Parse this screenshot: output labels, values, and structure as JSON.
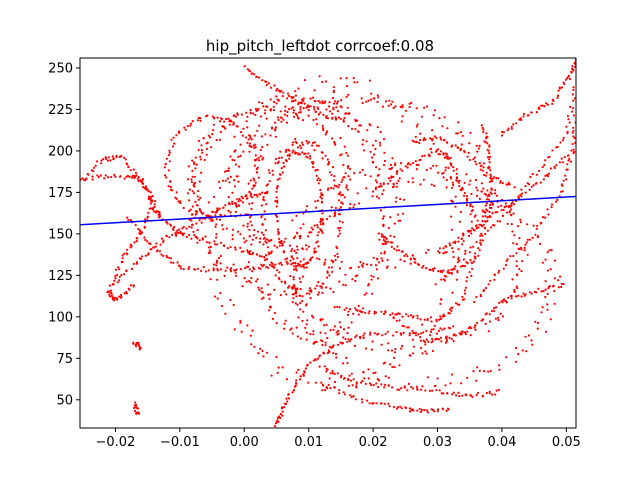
{
  "chart_data": {
    "type": "scatter",
    "title": "hip_pitch_leftdot corrcoef:0.08",
    "xlabel": "",
    "ylabel": "",
    "xlim": [
      -0.0255,
      0.0515
    ],
    "ylim": [
      33,
      256
    ],
    "x_ticks": [
      "−0.02",
      "−0.01",
      "0.00",
      "0.01",
      "0.02",
      "0.03",
      "0.04",
      "0.05"
    ],
    "x_tick_values": [
      -0.02,
      -0.01,
      0.0,
      0.01,
      0.02,
      0.03,
      0.04,
      0.05
    ],
    "y_ticks": [
      "50",
      "75",
      "100",
      "125",
      "150",
      "175",
      "200",
      "225",
      "250"
    ],
    "y_tick_values": [
      50,
      75,
      100,
      125,
      150,
      175,
      200,
      225,
      250
    ],
    "grid": false,
    "legend": "none",
    "scatter_color": "#ff0000",
    "fit_color": "#0000ff",
    "fit_line": {
      "x": [
        -0.0255,
        0.0515
      ],
      "y": [
        155.5,
        172.5
      ]
    },
    "loops": [
      {
        "cx": 0.0085,
        "cy": 165,
        "rx": 0.0035,
        "ry": 35,
        "n": 120
      },
      {
        "cx": 0.009,
        "cy": 160,
        "rx": 0.006,
        "ry": 45,
        "n": 140
      },
      {
        "cx": 0.011,
        "cy": 158,
        "rx": 0.0105,
        "ry": 70,
        "n": 170
      },
      {
        "cx": 0.008,
        "cy": 172,
        "rx": 0.016,
        "ry": 58,
        "n": 170
      },
      {
        "cx": 0.014,
        "cy": 150,
        "rx": 0.019,
        "ry": 90,
        "n": 200
      },
      {
        "cx": 0.004,
        "cy": 185,
        "rx": 0.012,
        "ry": 40,
        "n": 150
      },
      {
        "cx": -0.005,
        "cy": 190,
        "rx": 0.007,
        "ry": 30,
        "n": 110
      },
      {
        "cx": 0.018,
        "cy": 180,
        "rx": 0.02,
        "ry": 50,
        "n": 180
      },
      {
        "cx": 0.025,
        "cy": 135,
        "rx": 0.018,
        "ry": 55,
        "n": 170
      },
      {
        "cx": 0.028,
        "cy": 120,
        "rx": 0.02,
        "ry": 60,
        "n": 170
      }
    ],
    "paths": [
      [
        [
          -0.026,
          178
        ],
        [
          -0.022,
          195
        ],
        [
          -0.019,
          196
        ],
        [
          -0.016,
          182
        ],
        [
          -0.014,
          170
        ],
        [
          -0.016,
          150
        ],
        [
          -0.019,
          135
        ],
        [
          -0.021,
          115
        ],
        [
          -0.02,
          110
        ],
        [
          -0.017,
          120
        ]
      ],
      [
        [
          -0.026,
          183
        ],
        [
          -0.02,
          185
        ],
        [
          -0.016,
          183
        ],
        [
          -0.014,
          166
        ],
        [
          -0.013,
          160
        ],
        [
          -0.01,
          150
        ],
        [
          -0.006,
          146
        ],
        [
          0.0,
          140
        ],
        [
          0.004,
          134
        ]
      ],
      [
        [
          -0.02,
          120
        ],
        [
          -0.016,
          135
        ],
        [
          -0.012,
          148
        ],
        [
          -0.008,
          155
        ],
        [
          -0.004,
          165
        ],
        [
          0.0,
          172
        ],
        [
          0.004,
          175
        ]
      ],
      [
        [
          -0.018,
          160
        ],
        [
          -0.014,
          142
        ],
        [
          -0.01,
          130
        ],
        [
          -0.004,
          128
        ],
        [
          0.002,
          130
        ],
        [
          0.006,
          132
        ]
      ],
      [
        [
          -0.017,
          85
        ],
        [
          -0.016,
          80
        ]
      ],
      [
        [
          -0.017,
          48
        ],
        [
          -0.0165,
          40
        ]
      ],
      [
        [
          0.0,
          250
        ],
        [
          0.004,
          240
        ],
        [
          0.008,
          230
        ],
        [
          0.012,
          222
        ],
        [
          0.016,
          218
        ]
      ],
      [
        [
          0.005,
          35
        ],
        [
          0.006,
          45
        ],
        [
          0.008,
          60
        ],
        [
          0.011,
          75
        ],
        [
          0.015,
          85
        ],
        [
          0.02,
          90
        ],
        [
          0.027,
          90
        ],
        [
          0.033,
          95
        ]
      ],
      [
        [
          0.012,
          70
        ],
        [
          0.016,
          62
        ],
        [
          0.022,
          58
        ],
        [
          0.03,
          55
        ],
        [
          0.035,
          52
        ],
        [
          0.04,
          55
        ]
      ],
      [
        [
          0.012,
          60
        ],
        [
          0.018,
          50
        ],
        [
          0.024,
          45
        ],
        [
          0.028,
          43
        ],
        [
          0.032,
          45
        ]
      ],
      [
        [
          0.014,
          105
        ],
        [
          0.02,
          103
        ],
        [
          0.025,
          101
        ],
        [
          0.03,
          98
        ],
        [
          0.034,
          110
        ],
        [
          0.036,
          140
        ]
      ],
      [
        [
          0.02,
          175
        ],
        [
          0.025,
          190
        ],
        [
          0.03,
          200
        ],
        [
          0.032,
          195
        ],
        [
          0.034,
          175
        ],
        [
          0.036,
          160
        ]
      ],
      [
        [
          0.023,
          100
        ],
        [
          0.028,
          85
        ],
        [
          0.032,
          87
        ],
        [
          0.036,
          95
        ],
        [
          0.04,
          110
        ],
        [
          0.045,
          115
        ],
        [
          0.05,
          120
        ]
      ],
      [
        [
          0.03,
          140
        ],
        [
          0.035,
          150
        ],
        [
          0.038,
          160
        ],
        [
          0.042,
          170
        ],
        [
          0.047,
          185
        ],
        [
          0.051,
          200
        ]
      ],
      [
        [
          0.03,
          120
        ],
        [
          0.035,
          140
        ],
        [
          0.04,
          160
        ],
        [
          0.045,
          185
        ],
        [
          0.05,
          210
        ],
        [
          0.0515,
          240
        ]
      ],
      [
        [
          0.036,
          110
        ],
        [
          0.04,
          130
        ],
        [
          0.045,
          150
        ],
        [
          0.049,
          175
        ],
        [
          0.051,
          200
        ],
        [
          0.0515,
          225
        ]
      ],
      [
        [
          0.037,
          215
        ],
        [
          0.038,
          200
        ],
        [
          0.0385,
          175
        ],
        [
          0.037,
          160
        ]
      ],
      [
        [
          0.04,
          210
        ],
        [
          0.044,
          222
        ],
        [
          0.048,
          230
        ],
        [
          0.0505,
          245
        ],
        [
          0.0515,
          255
        ]
      ],
      [
        [
          0.021,
          150
        ],
        [
          0.024,
          140
        ],
        [
          0.028,
          130
        ],
        [
          0.032,
          126
        ],
        [
          0.036,
          135
        ],
        [
          0.038,
          165
        ]
      ],
      [
        [
          0.026,
          205
        ],
        [
          0.03,
          208
        ],
        [
          0.034,
          200
        ],
        [
          0.038,
          185
        ],
        [
          0.042,
          178
        ]
      ]
    ]
  }
}
